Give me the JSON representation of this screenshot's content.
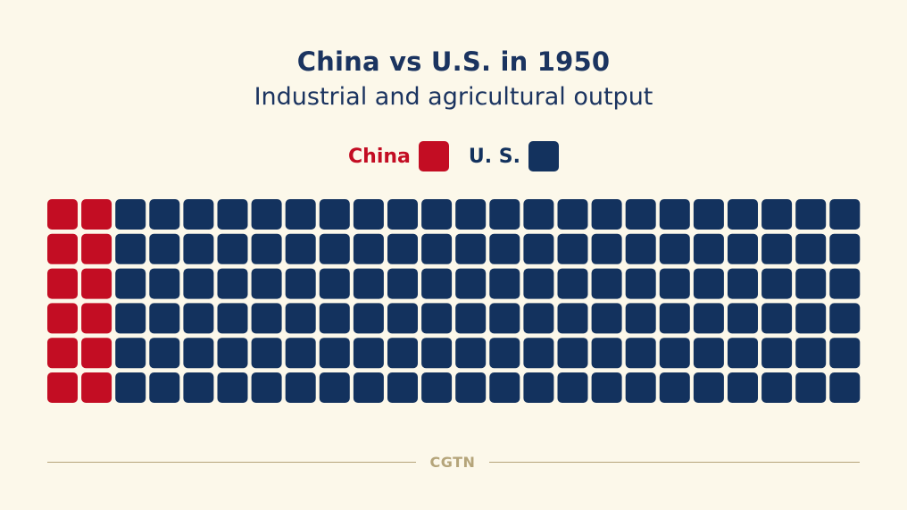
{
  "colors": {
    "background": "#fcf8ea",
    "title": "#1b3460",
    "china": "#c30d23",
    "us": "#13325e",
    "footer": "#b5a57a"
  },
  "chart_data": {
    "type": "waffle",
    "title": "China vs U.S. in 1950",
    "subtitle": "Industrial and agricultural output",
    "rows": 6,
    "columns": 24,
    "legend_placement": "top-center",
    "series": [
      {
        "name": "China",
        "color": "#c30d23",
        "columns": 2,
        "units": 12
      },
      {
        "name": "U. S.",
        "color": "#13325e",
        "columns": 22,
        "units": 132
      }
    ]
  },
  "footer": {
    "brand": "CGTN"
  }
}
